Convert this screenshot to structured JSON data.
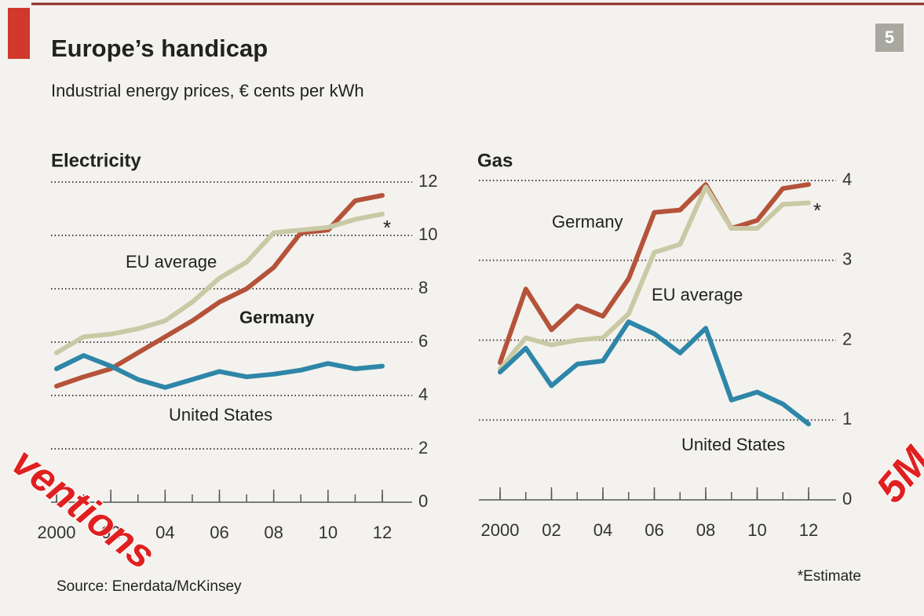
{
  "title": "Europe’s handicap",
  "subtitle": "Industrial energy prices, € cents per kWh",
  "badge": "5",
  "source": "Source: Enerdata/McKinsey",
  "footnote": "*Estimate",
  "watermarks": [
    "ventions",
    "5M"
  ],
  "chart_data": [
    {
      "type": "line",
      "title": "Electricity",
      "estimate_marker": "*",
      "x": [
        2000,
        2001,
        2002,
        2003,
        2004,
        2005,
        2006,
        2007,
        2008,
        2009,
        2010,
        2011,
        2012
      ],
      "xlim": [
        2000,
        2012
      ],
      "xticks": [
        2000,
        {
          "value": 2002,
          "label": "02"
        },
        {
          "value": 2004,
          "label": "04"
        },
        {
          "value": 2006,
          "label": "06"
        },
        {
          "value": 2008,
          "label": "08"
        },
        {
          "value": 2010,
          "label": "10"
        },
        {
          "value": 2012,
          "label": "12"
        }
      ],
      "ylim": [
        0,
        12
      ],
      "yticks": [
        0,
        2,
        4,
        6,
        8,
        10,
        12
      ],
      "grid": true,
      "series": [
        {
          "name": "Germany",
          "color": "#b5533a",
          "values": [
            4.35,
            4.7,
            5.0,
            5.6,
            6.2,
            6.8,
            7.5,
            8.0,
            8.8,
            10.1,
            10.2,
            11.3,
            11.5
          ]
        },
        {
          "name": "EU average",
          "color": "#c9c9a6",
          "values": [
            5.6,
            6.2,
            6.3,
            6.5,
            6.8,
            7.5,
            8.4,
            9.0,
            10.1,
            10.2,
            10.3,
            10.6,
            10.8
          ]
        },
        {
          "name": "United States",
          "color": "#2e86a8",
          "values": [
            5.0,
            5.5,
            5.1,
            4.6,
            4.3,
            4.6,
            4.9,
            4.7,
            4.8,
            4.95,
            5.2,
            5.0,
            5.1
          ]
        }
      ]
    },
    {
      "type": "line",
      "title": "Gas",
      "estimate_marker": "*",
      "x": [
        2000,
        2001,
        2002,
        2003,
        2004,
        2005,
        2006,
        2007,
        2008,
        2009,
        2010,
        2011,
        2012
      ],
      "xlim": [
        2000,
        2012
      ],
      "xticks": [
        2000,
        {
          "value": 2002,
          "label": "02"
        },
        {
          "value": 2004,
          "label": "04"
        },
        {
          "value": 2006,
          "label": "06"
        },
        {
          "value": 2008,
          "label": "08"
        },
        {
          "value": 2010,
          "label": "10"
        },
        {
          "value": 2012,
          "label": "12"
        }
      ],
      "ylim": [
        0,
        4
      ],
      "yticks": [
        0,
        1,
        2,
        3,
        4
      ],
      "grid": true,
      "series": [
        {
          "name": "Germany",
          "color": "#b5533a",
          "values": [
            1.72,
            2.64,
            2.13,
            2.43,
            2.3,
            2.77,
            3.6,
            3.63,
            3.95,
            3.4,
            3.5,
            3.9,
            3.95
          ]
        },
        {
          "name": "EU average",
          "color": "#c9c9a6",
          "values": [
            1.64,
            2.03,
            1.94,
            2.0,
            2.03,
            2.33,
            3.1,
            3.2,
            3.92,
            3.4,
            3.4,
            3.7,
            3.72
          ]
        },
        {
          "name": "United States",
          "color": "#2e86a8",
          "values": [
            1.6,
            1.9,
            1.43,
            1.7,
            1.74,
            2.23,
            2.08,
            1.84,
            2.15,
            1.25,
            1.35,
            1.2,
            0.95
          ]
        }
      ]
    }
  ]
}
